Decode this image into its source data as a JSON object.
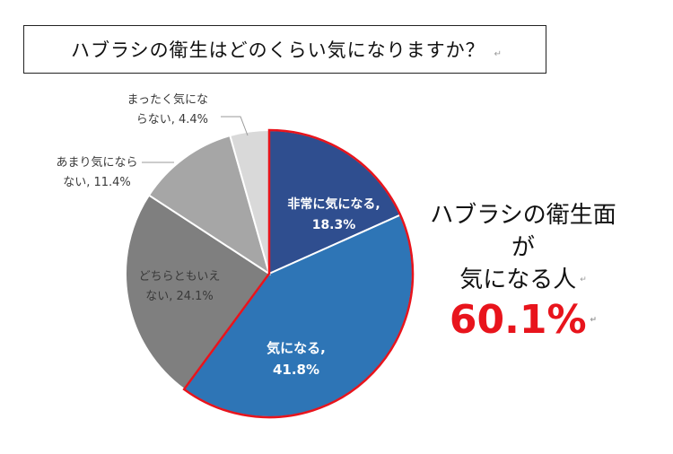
{
  "title": "ハブラシの衛生はどのくらい気になりますか？",
  "return_mark": "↵",
  "callout": {
    "line1": "ハブラシの衛生面が",
    "line2": "気になる人",
    "percent": "60.1%"
  },
  "chart_data": {
    "type": "pie",
    "start_angle_deg": 0,
    "direction": "clockwise",
    "slices": [
      {
        "label_lines": [
          "非常に気になる,",
          "18.3%"
        ],
        "value": 18.3,
        "color": "#2f4e8f",
        "label_color": "#ffffff",
        "highlight": true
      },
      {
        "label_lines": [
          "気になる,",
          "41.8%"
        ],
        "value": 41.8,
        "color": "#2e75b6",
        "label_color": "#ffffff",
        "highlight": true
      },
      {
        "label_lines": [
          "どちらともいえ",
          "ない, 24.1%"
        ],
        "value": 24.1,
        "color": "#7f7f7f",
        "label_color": "#3a3a3a",
        "highlight": false
      },
      {
        "label_lines": [
          "あまり気になら",
          "ない, 11.4%"
        ],
        "value": 11.4,
        "color": "#a6a6a6",
        "label_color": "#3a3a3a",
        "highlight": false
      },
      {
        "label_lines": [
          "まったく気にな",
          "らない, 4.4%"
        ],
        "value": 4.4,
        "color": "#d9d9d9",
        "label_color": "#3a3a3a",
        "highlight": false
      }
    ],
    "highlight_outline_color": "#e8141c"
  }
}
